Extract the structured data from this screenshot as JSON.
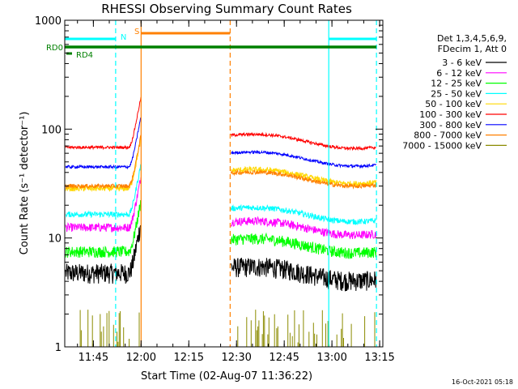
{
  "chart_data": {
    "type": "line",
    "title": "RHESSI Observing Summary Count Rates",
    "xlabel": "Start Time (02-Aug-07 11:36:22)",
    "ylabel": "Count Rate (s⁻¹ detector⁻¹)",
    "yscale": "log",
    "ylim": [
      1,
      1000
    ],
    "xlim": [
      "11:36",
      "13:16"
    ],
    "x_ticks": [
      "11:45",
      "12:00",
      "12:15",
      "12:30",
      "12:45",
      "13:00",
      "13:15"
    ],
    "y_ticks": [
      "1",
      "10",
      "100",
      "1000"
    ],
    "timestamp": "16-Oct-2021 05:18",
    "legend": {
      "placement": "right",
      "header": [
        "Det 1,3,4,5,6,9,",
        "FDecim 1, Att 0"
      ]
    },
    "data_gap": [
      "12:00",
      "12:28"
    ],
    "series": [
      {
        "name": "3 - 6 keV",
        "color": "#000000",
        "pre": 4.8,
        "post": 4.9,
        "noise": 0.07
      },
      {
        "name": "6 - 12 keV",
        "color": "#ff00ff",
        "pre": 12.5,
        "post": 12.8,
        "noise": 0.03
      },
      {
        "name": "12 - 25 keV",
        "color": "#00ff00",
        "pre": 7.5,
        "post": 8.8,
        "noise": 0.04
      },
      {
        "name": "25 - 50 keV",
        "color": "#00ffff",
        "pre": 16.5,
        "post": 17.0,
        "noise": 0.02
      },
      {
        "name": "50 - 100 keV",
        "color": "#ffd700",
        "pre": 28.5,
        "post": 38.0,
        "noise": 0.02
      },
      {
        "name": "100 - 300 keV",
        "color": "#ff0000",
        "pre": 68.0,
        "post": 80.0,
        "noise": 0.01
      },
      {
        "name": "300 - 800 keV",
        "color": "#0000ff",
        "pre": 45.0,
        "post": 55.0,
        "noise": 0.01
      },
      {
        "name": "800 - 7000 keV",
        "color": "#ff8000",
        "pre": 30.0,
        "post": 36.0,
        "noise": 0.015
      },
      {
        "name": "7000 - 15000 keV",
        "color": "#8b8b00",
        "pre": 0,
        "post": 0,
        "noise": 0
      }
    ],
    "flags": [
      {
        "label": "N",
        "color": "#00ffff",
        "spans": [
          [
            "11:36",
            "11:52"
          ],
          [
            "12:59",
            "13:14"
          ]
        ]
      },
      {
        "label": "S",
        "color": "#ff8000",
        "spans": [
          [
            "12:00",
            "12:28"
          ]
        ]
      },
      {
        "label": "RD0",
        "color": "#008000",
        "spans": [
          [
            "11:36",
            "13:14"
          ]
        ]
      },
      {
        "label": "RD4",
        "color": "#008000",
        "spans": []
      }
    ],
    "vlines": [
      {
        "at": "11:52",
        "color": "#00ffff",
        "style": "dashed"
      },
      {
        "at": "12:00",
        "color": "#ff8000",
        "style": "solid"
      },
      {
        "at": "12:28",
        "color": "#ff8000",
        "style": "dashed"
      },
      {
        "at": "12:59",
        "color": "#00ffff",
        "style": "solid"
      },
      {
        "at": "13:14",
        "color": "#00ffff",
        "style": "dashed"
      }
    ]
  }
}
